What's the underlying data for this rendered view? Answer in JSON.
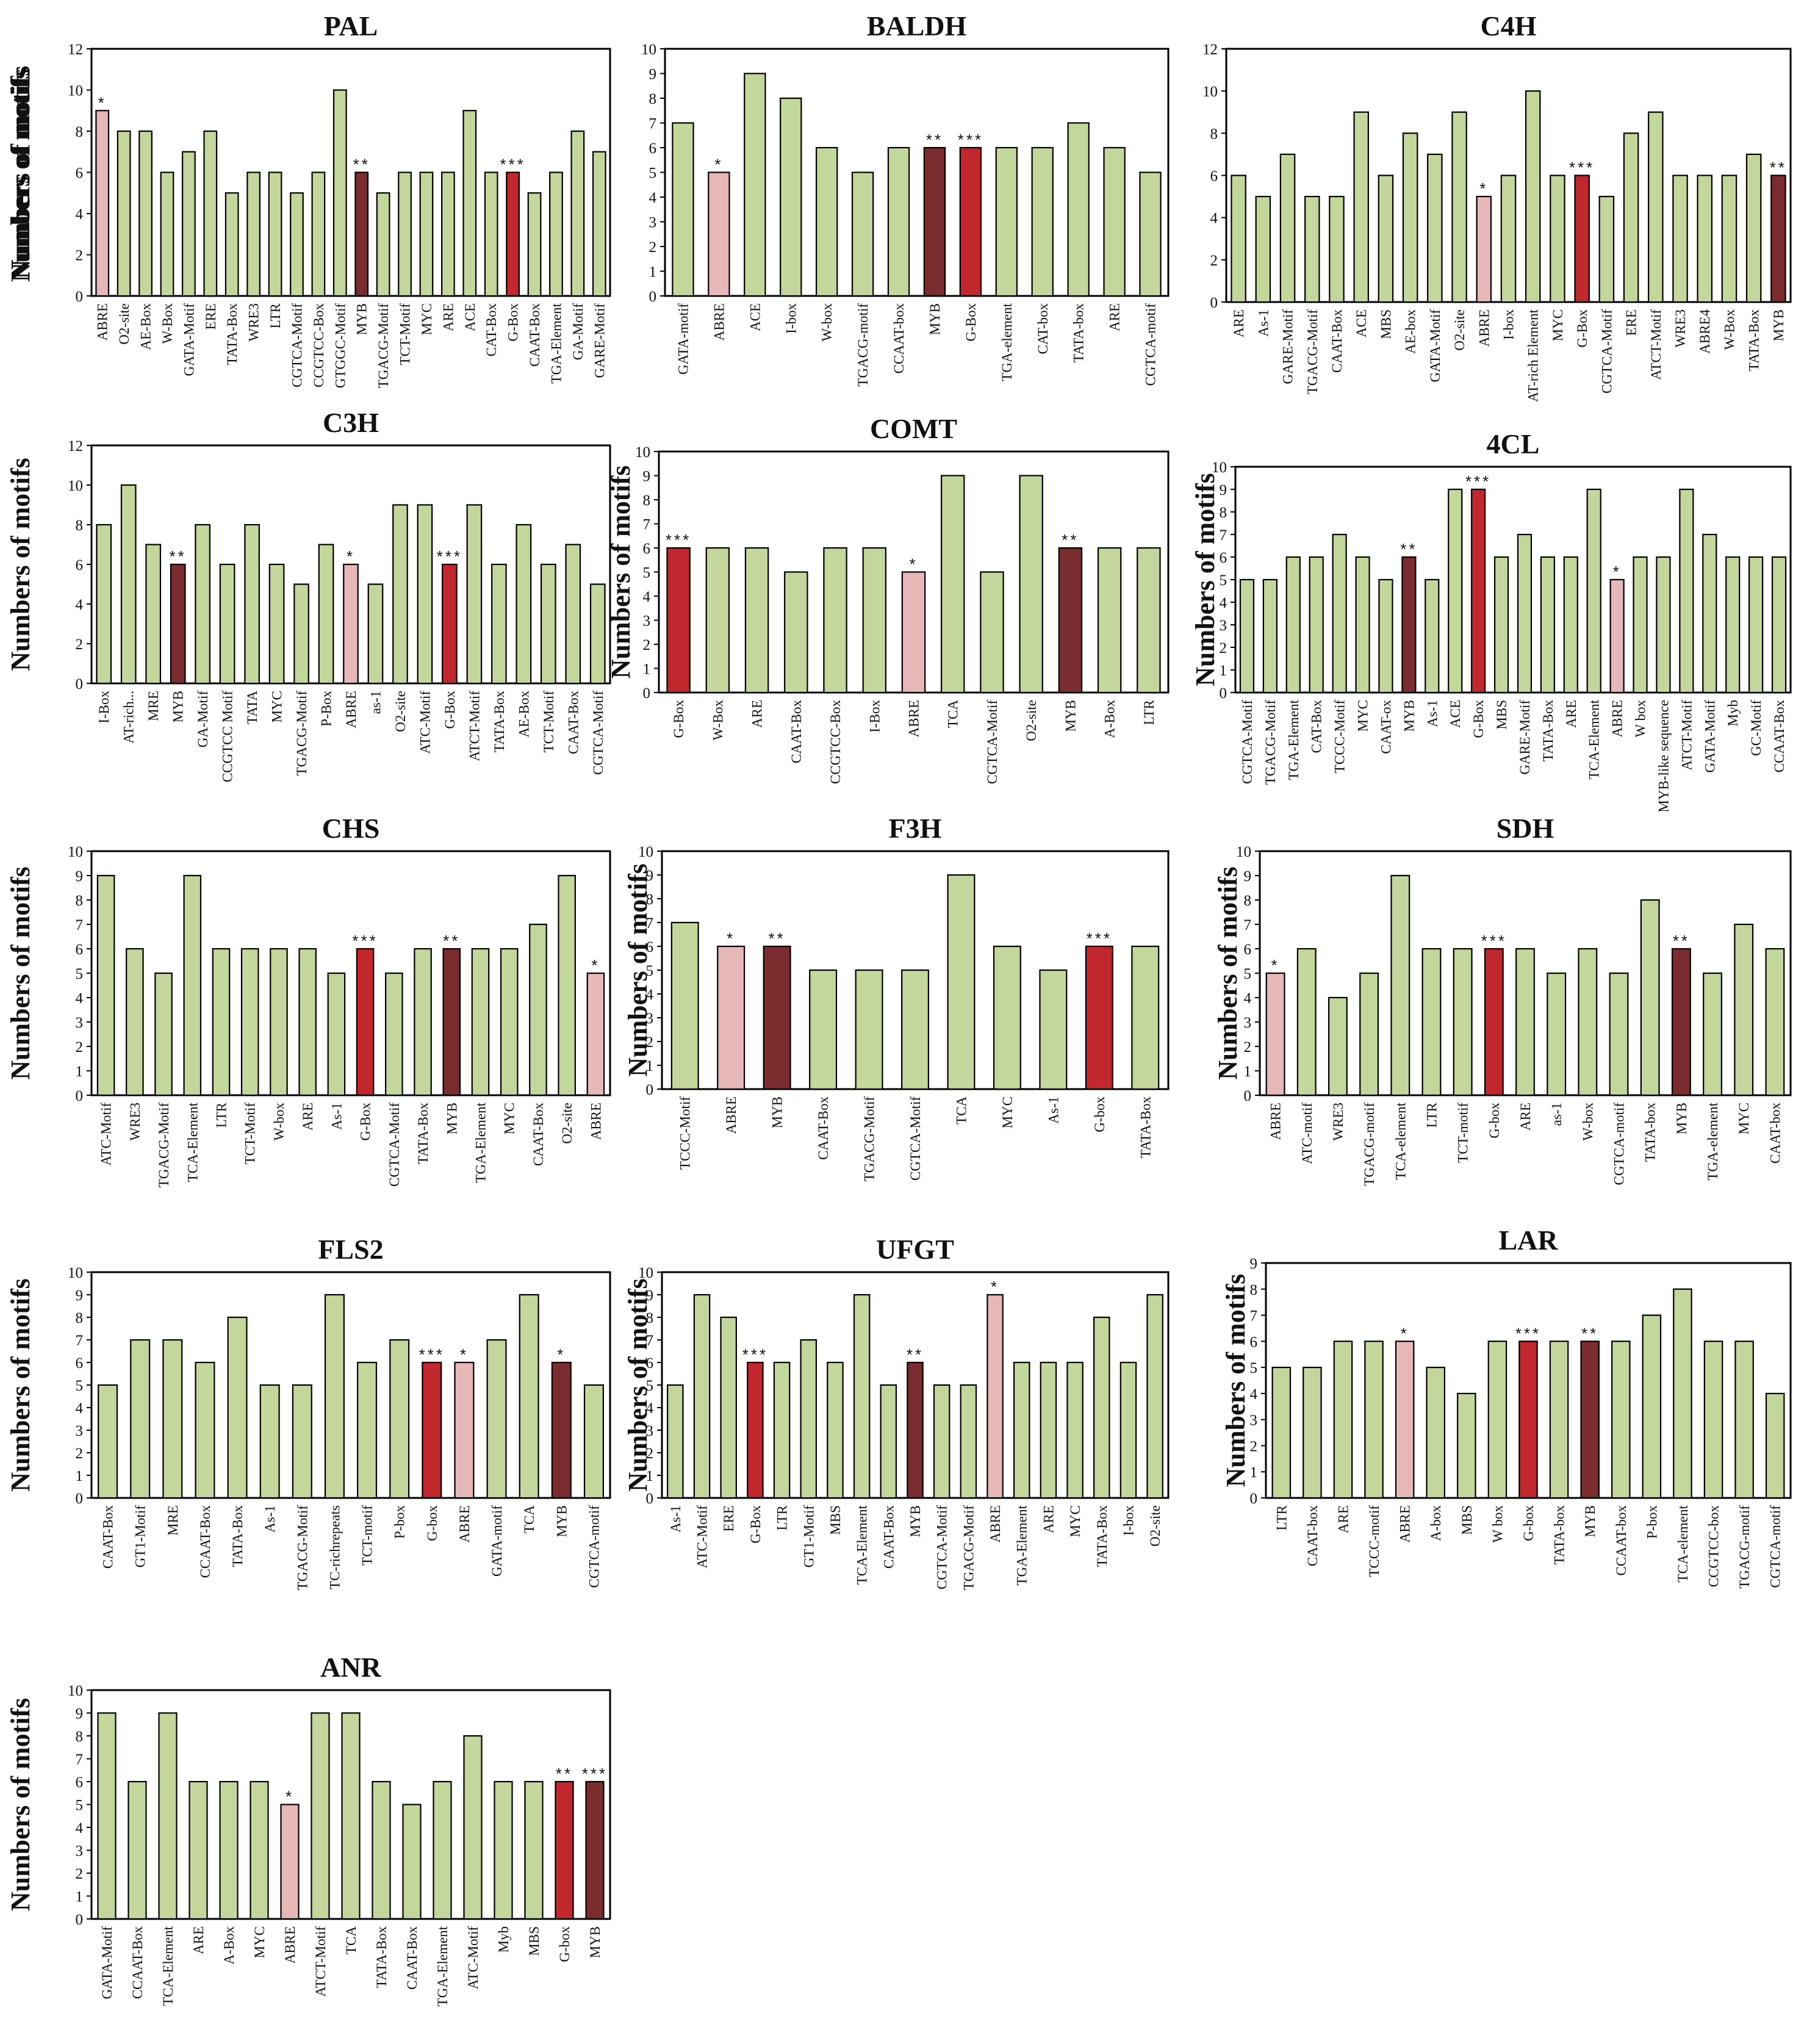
{
  "figure": {
    "ylabel": "Numbers of motifs"
  },
  "colors": {
    "default": "#c3d69b",
    "ABRE": "#e6b9b8",
    "G-Box": "#c0282d",
    "MYB": "#7b2c2f",
    "stroke": "#000000"
  },
  "chart_data": [
    {
      "type": "bar",
      "title": "PAL",
      "ylim": [
        0,
        12
      ],
      "yticks": [
        0,
        2,
        4,
        6,
        8,
        10,
        12
      ],
      "categories": [
        "ABRE",
        "O2-site",
        "AE-Box",
        "W-Box",
        "GATA-Motif",
        "ERE",
        "TATA-Box",
        "WRE3",
        "LTR",
        "CGTCA-Motif",
        "CCGTCC-Box",
        "GTGGC-Motif",
        "MYB",
        "TGACG-Motif",
        "TCT-Motif",
        "MYC",
        "ARE",
        "ACE",
        "CAT-Box",
        "G-Box",
        "CAAT-Box",
        "TGA-Element",
        "GA-Motif",
        "GARE-Motif"
      ],
      "values": [
        9,
        8,
        8,
        6,
        7,
        8,
        5,
        6,
        6,
        5,
        6,
        10,
        6,
        5,
        6,
        6,
        6,
        9,
        6,
        6,
        5,
        6,
        8,
        7
      ],
      "highlights": [
        {
          "index": 0,
          "kind": "ABRE",
          "label": "*"
        },
        {
          "index": 12,
          "kind": "MYB",
          "label": "**"
        },
        {
          "index": 19,
          "kind": "G-Box",
          "label": "***"
        }
      ]
    },
    {
      "type": "bar",
      "title": "BALDH",
      "ylim": [
        0,
        10
      ],
      "yticks": [
        0,
        1,
        2,
        3,
        4,
        5,
        6,
        7,
        8,
        9,
        10
      ],
      "categories": [
        "GATA-motif",
        "ABRE",
        "ACE",
        "I-box",
        "W-box",
        "TGACG-motif",
        "CCAAT-box",
        "MYB",
        "G-Box",
        "TGA-element",
        "CAT-box",
        "TATA-box",
        "ARE",
        "CGTCA-motif"
      ],
      "values": [
        7,
        5,
        9,
        8,
        6,
        5,
        6,
        6,
        6,
        6,
        6,
        7,
        6,
        5
      ],
      "highlights": [
        {
          "index": 1,
          "kind": "ABRE",
          "label": "*"
        },
        {
          "index": 7,
          "kind": "MYB",
          "label": "**"
        },
        {
          "index": 8,
          "kind": "G-Box",
          "label": "***"
        }
      ]
    },
    {
      "type": "bar",
      "title": "C4H",
      "ylim": [
        0,
        12
      ],
      "yticks": [
        0,
        2,
        4,
        6,
        8,
        10,
        12
      ],
      "categories": [
        "ARE",
        "As-1",
        "GARE-Motif",
        "TGACG-Motif",
        "CAAT-Box",
        "ACE",
        "MBS",
        "AE-box",
        "GATA-Motif",
        "O2-site",
        "ABRE",
        "I-box",
        "AT-rich Element",
        "MYC",
        "G-Box",
        "CGTCA-Motif",
        "ERE",
        "ATCT-Motif",
        "WRE3",
        "ABRE4",
        "W-Box",
        "TATA-Box",
        "MYB"
      ],
      "values": [
        6,
        5,
        7,
        5,
        5,
        9,
        6,
        8,
        7,
        9,
        5,
        6,
        10,
        6,
        6,
        5,
        8,
        9,
        6,
        6,
        6,
        7,
        6
      ],
      "highlights": [
        {
          "index": 10,
          "kind": "ABRE",
          "label": "*"
        },
        {
          "index": 14,
          "kind": "G-Box",
          "label": "***"
        },
        {
          "index": 22,
          "kind": "MYB",
          "label": "**"
        }
      ]
    },
    {
      "type": "bar",
      "title": "C3H",
      "ylim": [
        0,
        12
      ],
      "yticks": [
        0,
        2,
        4,
        6,
        8,
        10,
        12
      ],
      "categories": [
        "I-Box",
        "AT-rich...",
        "MRE",
        "MYB",
        "GA-Motif",
        "CCGTCC Motif",
        "TATA",
        "MYC",
        "TGACG-Motif",
        "P-Box",
        "ABRE",
        "as-1",
        "O2-site",
        "ATC-Motif",
        "G-Box",
        "ATCT-Motif",
        "TATA-Box",
        "AE-Box",
        "TCT-Motif",
        "CAAT-Box",
        "CGTCA-Motif"
      ],
      "values": [
        8,
        10,
        7,
        6,
        8,
        6,
        8,
        6,
        5,
        7,
        6,
        5,
        9,
        9,
        6,
        9,
        6,
        8,
        6,
        7,
        5
      ],
      "highlights": [
        {
          "index": 3,
          "kind": "MYB",
          "label": "**"
        },
        {
          "index": 10,
          "kind": "ABRE",
          "label": "*"
        },
        {
          "index": 14,
          "kind": "G-Box",
          "label": "***"
        }
      ]
    },
    {
      "type": "bar",
      "title": "COMT",
      "ylim": [
        0,
        10
      ],
      "yticks": [
        0,
        1,
        2,
        3,
        4,
        5,
        6,
        7,
        8,
        9,
        10
      ],
      "categories": [
        "G-Box",
        "W-Box",
        "ARE",
        "CAAT-Box",
        "CCGTCC-Box",
        "I-Box",
        "ABRE",
        "TCA",
        "CGTCA-Motif",
        "O2-site",
        "MYB",
        "A-Box",
        "LTR"
      ],
      "values": [
        6,
        6,
        6,
        5,
        6,
        6,
        5,
        9,
        5,
        9,
        6,
        6,
        6
      ],
      "highlights": [
        {
          "index": 0,
          "kind": "G-Box",
          "label": "***"
        },
        {
          "index": 6,
          "kind": "ABRE",
          "label": "*"
        },
        {
          "index": 10,
          "kind": "MYB",
          "label": "**"
        }
      ]
    },
    {
      "type": "bar",
      "title": "4CL",
      "ylim": [
        0,
        10
      ],
      "yticks": [
        0,
        1,
        2,
        3,
        4,
        5,
        6,
        7,
        8,
        9,
        10
      ],
      "categories": [
        "CGTCA-Motif",
        "TGACG-Motif",
        "TGA-Element",
        "CAT-Box",
        "TCCC-Motif",
        "MYC",
        "CAAT-ox",
        "MYB",
        "As-1",
        "ACE",
        "G-Box",
        "MBS",
        "GARE-Motif",
        "TATA-Box",
        "ARE",
        "TCA-Element",
        "ABRE",
        "W box",
        "MYB-like sequence",
        "ATCT-Motif",
        "GATA-Motif",
        "Myb",
        "GC-Motif",
        "CCAAT-Box"
      ],
      "values": [
        5,
        5,
        6,
        6,
        7,
        6,
        5,
        6,
        5,
        9,
        9,
        6,
        7,
        6,
        6,
        9,
        5,
        6,
        6,
        9,
        7,
        6,
        6,
        6
      ],
      "highlights": [
        {
          "index": 7,
          "kind": "MYB",
          "label": "**"
        },
        {
          "index": 10,
          "kind": "G-Box",
          "label": "***"
        },
        {
          "index": 16,
          "kind": "ABRE",
          "label": "*"
        }
      ]
    },
    {
      "type": "bar",
      "title": "CHS",
      "ylim": [
        0,
        10
      ],
      "yticks": [
        0,
        1,
        2,
        3,
        4,
        5,
        6,
        7,
        8,
        9,
        10
      ],
      "categories": [
        "ATC-Motif",
        "WRE3",
        "TGACG-Motif",
        "TCA-Element",
        "LTR",
        "TCT-Motif",
        "W-box",
        "ARE",
        "As-1",
        "G-Box",
        "CGTCA-Motif",
        "TATA-Box",
        "MYB",
        "TGA-Element",
        "MYC",
        "CAAT-Box",
        "O2-site",
        "ABRE"
      ],
      "values": [
        9,
        6,
        5,
        9,
        6,
        6,
        6,
        6,
        5,
        6,
        5,
        6,
        6,
        6,
        6,
        7,
        9,
        5
      ],
      "highlights": [
        {
          "index": 9,
          "kind": "G-Box",
          "label": "***"
        },
        {
          "index": 12,
          "kind": "MYB",
          "label": "**"
        },
        {
          "index": 17,
          "kind": "ABRE",
          "label": "*"
        }
      ]
    },
    {
      "type": "bar",
      "title": "F3H",
      "ylim": [
        0,
        10
      ],
      "yticks": [
        0,
        1,
        2,
        3,
        4,
        5,
        6,
        7,
        8,
        9,
        10
      ],
      "categories": [
        "TCCC-Motif",
        "ABRE",
        "MYB",
        "CAAT-Box",
        "TGACG-Motif",
        "CGTCA-Motif",
        "TCA",
        "MYC",
        "As-1",
        "G-box",
        "TATA-Box"
      ],
      "values": [
        7,
        6,
        6,
        5,
        5,
        5,
        9,
        6,
        5,
        6,
        6
      ],
      "highlights": [
        {
          "index": 1,
          "kind": "ABRE",
          "label": "*"
        },
        {
          "index": 2,
          "kind": "MYB",
          "label": "**"
        },
        {
          "index": 9,
          "kind": "G-Box",
          "label": "***"
        }
      ]
    },
    {
      "type": "bar",
      "title": "SDH",
      "ylim": [
        0,
        10
      ],
      "yticks": [
        0,
        1,
        2,
        3,
        4,
        5,
        6,
        7,
        8,
        9,
        10
      ],
      "categories": [
        "ABRE",
        "ATC-motif",
        "WRE3",
        "TGACG-motif",
        "TCA-element",
        "LTR",
        "TCT-motif",
        "G-box",
        "ARE",
        "as-1",
        "W-box",
        "CGTCA-motif",
        "TATA-box",
        "MYB",
        "TGA-element",
        "MYC",
        "CAAT-box"
      ],
      "values": [
        5,
        6,
        4,
        5,
        9,
        6,
        6,
        6,
        6,
        5,
        6,
        5,
        8,
        6,
        5,
        7,
        6
      ],
      "highlights": [
        {
          "index": 0,
          "kind": "ABRE",
          "label": "*"
        },
        {
          "index": 7,
          "kind": "G-Box",
          "label": "***"
        },
        {
          "index": 13,
          "kind": "MYB",
          "label": "**"
        }
      ]
    },
    {
      "type": "bar",
      "title": "FLS2",
      "ylim": [
        0,
        10
      ],
      "yticks": [
        0,
        1,
        2,
        3,
        4,
        5,
        6,
        7,
        8,
        9,
        10
      ],
      "categories": [
        "CAAT-Box",
        "GT1-Motif",
        "MRE",
        "CCAAT-Box",
        "TATA-Box",
        "As-1",
        "TGACG-Motif",
        "TC-richrepeats",
        "TCT-motif",
        "P-box",
        "G-box",
        "ABRE",
        "GATA-motif",
        "TCA",
        "MYB",
        "CGTCA-motif"
      ],
      "values": [
        5,
        7,
        7,
        6,
        8,
        5,
        5,
        9,
        6,
        7,
        6,
        6,
        7,
        9,
        6,
        5
      ],
      "highlights": [
        {
          "index": 10,
          "kind": "G-Box",
          "label": "***"
        },
        {
          "index": 11,
          "kind": "ABRE",
          "label": "*"
        },
        {
          "index": 14,
          "kind": "MYB",
          "label": "*"
        }
      ]
    },
    {
      "type": "bar",
      "title": "UFGT",
      "ylim": [
        0,
        10
      ],
      "yticks": [
        0,
        1,
        2,
        3,
        4,
        5,
        6,
        7,
        8,
        9,
        10
      ],
      "categories": [
        "As-1",
        "ATC-Motif",
        "ERE",
        "G-Box",
        "LTR",
        "GT1-Motif",
        "MBS",
        "TCA-Element",
        "CAAT-Box",
        "MYB",
        "CGTCA-Motif",
        "TGACG-Motif",
        "ABRE",
        "TGA-Element",
        "ARE",
        "MYC",
        "TATA-Box",
        "I-box",
        "O2-site"
      ],
      "values": [
        5,
        9,
        8,
        6,
        6,
        7,
        6,
        9,
        5,
        6,
        5,
        5,
        9,
        6,
        6,
        6,
        8,
        6,
        9
      ],
      "highlights": [
        {
          "index": 3,
          "kind": "G-Box",
          "label": "***"
        },
        {
          "index": 9,
          "kind": "MYB",
          "label": "**"
        },
        {
          "index": 12,
          "kind": "ABRE",
          "label": "*"
        }
      ]
    },
    {
      "type": "bar",
      "title": "LAR",
      "ylim": [
        0,
        9
      ],
      "yticks": [
        0,
        1,
        2,
        3,
        4,
        5,
        6,
        7,
        8,
        9
      ],
      "categories": [
        "LTR",
        "CAAT-box",
        "ARE",
        "TCCC-motif",
        "ABRE",
        "A-box",
        "MBS",
        "W box",
        "G-box",
        "TATA-box",
        "MYB",
        "CCAAT-box",
        "P-box",
        "TCA-element",
        "CCGTCC-box",
        "TGACG-motif",
        "CGTCA-motif"
      ],
      "values": [
        5,
        5,
        6,
        6,
        6,
        5,
        4,
        6,
        6,
        6,
        6,
        6,
        7,
        8,
        6,
        6,
        4
      ],
      "highlights": [
        {
          "index": 4,
          "kind": "ABRE",
          "label": "*"
        },
        {
          "index": 8,
          "kind": "G-Box",
          "label": "***"
        },
        {
          "index": 10,
          "kind": "MYB",
          "label": "**"
        }
      ]
    },
    {
      "type": "bar",
      "title": "ANR",
      "ylim": [
        0,
        10
      ],
      "yticks": [
        0,
        1,
        2,
        3,
        4,
        5,
        6,
        7,
        8,
        9,
        10
      ],
      "categories": [
        "GATA-Motif",
        "CCAAT-Box",
        "TCA-Element",
        "ARE",
        "A-Box",
        "MYC",
        "ABRE",
        "ATCT-Motif",
        "TCA",
        "TATA-Box",
        "CAAT-Box",
        "TGA-Element",
        "ATC-Motif",
        "Myb",
        "MBS",
        "G-box",
        "MYB"
      ],
      "values": [
        9,
        6,
        9,
        6,
        6,
        6,
        5,
        9,
        9,
        6,
        5,
        6,
        8,
        6,
        6,
        6,
        6
      ],
      "highlights": [
        {
          "index": 6,
          "kind": "ABRE",
          "label": "*"
        },
        {
          "index": 15,
          "kind": "G-Box",
          "label": "**"
        },
        {
          "index": 16,
          "kind": "MYB",
          "label": "***"
        }
      ]
    }
  ]
}
